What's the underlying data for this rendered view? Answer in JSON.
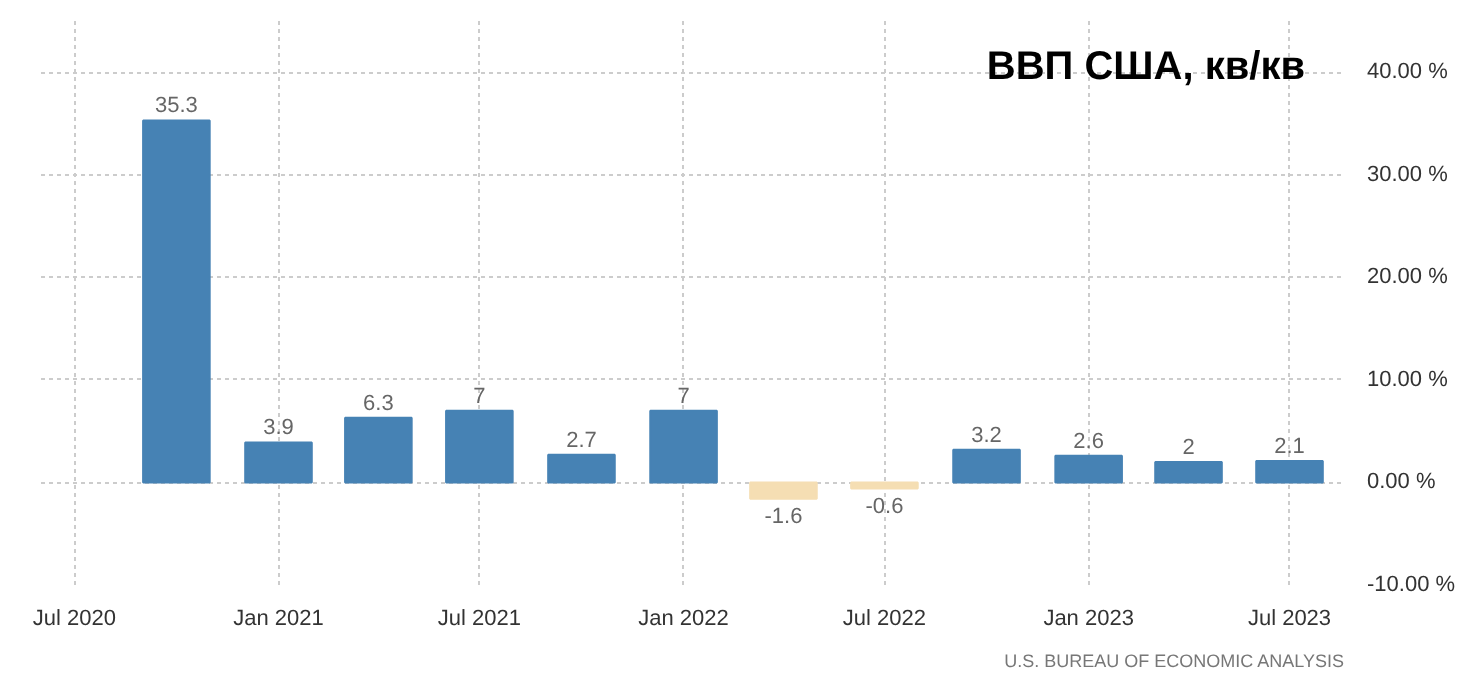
{
  "chart_data": {
    "type": "bar",
    "title": "ВВП США, кв/кв",
    "x": [
      "2020-10-01",
      "2021-01-01",
      "2021-04-01",
      "2021-07-01",
      "2021-10-01",
      "2022-01-01",
      "2022-04-01",
      "2022-07-01",
      "2022-10-01",
      "2023-01-01",
      "2023-04-01",
      "2023-07-01"
    ],
    "values": [
      35.3,
      3.9,
      6.3,
      7,
      2.7,
      7,
      -1.6,
      -0.6,
      3.2,
      2.6,
      2,
      2.1
    ],
    "colors": [
      "#4682b4",
      "#4682b4",
      "#4682b4",
      "#4682b4",
      "#4682b4",
      "#4682b4",
      "#f5deb3",
      "#f5deb3",
      "#4682b4",
      "#4682b4",
      "#4682b4",
      "#4682b4"
    ],
    "data_labels": true,
    "xlim": [
      "2020-06-01",
      "2023-08-20"
    ],
    "xticks": [
      {
        "value": "2020-07-01",
        "label": "Jul 2020"
      },
      {
        "value": "2021-01-01",
        "label": "Jan 2021"
      },
      {
        "value": "2021-07-01",
        "label": "Jul 2021"
      },
      {
        "value": "2022-01-01",
        "label": "Jan 2022"
      },
      {
        "value": "2022-07-01",
        "label": "Jul 2022"
      },
      {
        "value": "2023-01-01",
        "label": "Jan 2023"
      },
      {
        "value": "2023-07-01",
        "label": "Jul 2023"
      }
    ],
    "ylim": [
      -10,
      45
    ],
    "yticks": [
      {
        "value": -10,
        "label": "-10.00 %"
      },
      {
        "value": 0,
        "label": "0.00 %"
      },
      {
        "value": 10,
        "label": "10.00 %"
      },
      {
        "value": 20,
        "label": "20.00 %"
      },
      {
        "value": 30,
        "label": "30.00 %"
      },
      {
        "value": 40,
        "label": "40.00 %"
      }
    ],
    "grid": true,
    "annotations": [
      "U.S. BUREAU OF ECONOMIC ANALYSIS"
    ]
  }
}
